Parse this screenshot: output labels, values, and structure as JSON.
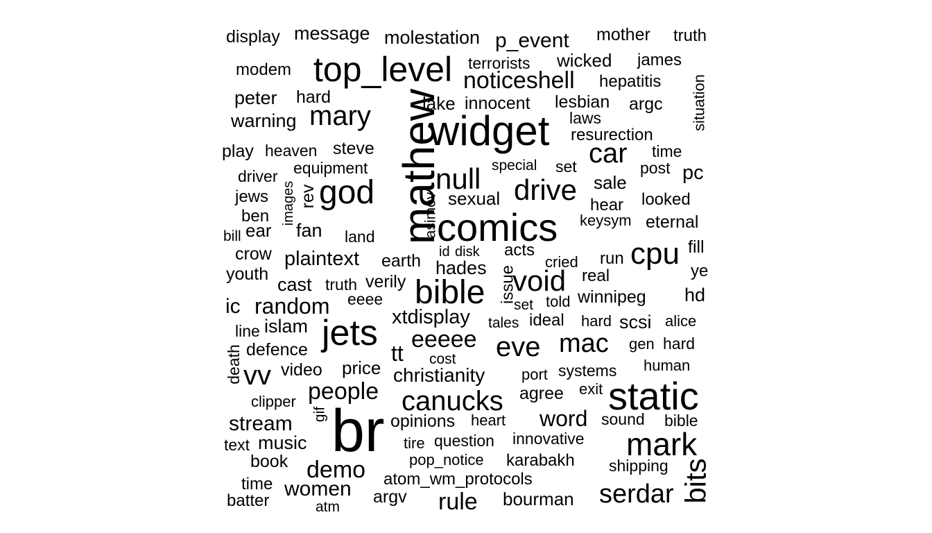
{
  "word_cloud": {
    "words": [
      {
        "text": "br",
        "rotated": false
      },
      {
        "text": "comics",
        "rotated": false
      },
      {
        "text": "widget",
        "rotated": false
      },
      {
        "text": "mathew",
        "rotated": true
      },
      {
        "text": "static",
        "rotated": false
      },
      {
        "text": "top_level",
        "rotated": false
      },
      {
        "text": "jets",
        "rotated": false
      },
      {
        "text": "god",
        "rotated": false
      },
      {
        "text": "bible",
        "rotated": false
      },
      {
        "text": "mark",
        "rotated": false
      },
      {
        "text": "null",
        "rotated": false
      },
      {
        "text": "drive",
        "rotated": false
      },
      {
        "text": "car",
        "rotated": false
      },
      {
        "text": "mary",
        "rotated": false
      },
      {
        "text": "canucks",
        "rotated": false
      },
      {
        "text": "cpu",
        "rotated": false
      },
      {
        "text": "void",
        "rotated": false
      },
      {
        "text": "eve",
        "rotated": false
      },
      {
        "text": "mac",
        "rotated": false
      },
      {
        "text": "serdar",
        "rotated": false
      },
      {
        "text": "bits",
        "rotated": true
      },
      {
        "text": "noticeshell",
        "rotated": false
      },
      {
        "text": "vv",
        "rotated": false
      },
      {
        "text": "people",
        "rotated": false
      },
      {
        "text": "demo",
        "rotated": false
      },
      {
        "text": "eeeee",
        "rotated": false
      },
      {
        "text": "rule",
        "rotated": false
      },
      {
        "text": "random",
        "rotated": false
      },
      {
        "text": "word",
        "rotated": false
      },
      {
        "text": "stream",
        "rotated": false
      },
      {
        "text": "women",
        "rotated": false
      },
      {
        "text": "xtdisplay",
        "rotated": false
      },
      {
        "text": "plaintext",
        "rotated": false
      },
      {
        "text": "christianity",
        "rotated": false
      },
      {
        "text": "p_event",
        "rotated": false
      },
      {
        "text": "molestation",
        "rotated": false
      },
      {
        "text": "message",
        "rotated": false
      },
      {
        "text": "display",
        "rotated": false
      },
      {
        "text": "mother",
        "rotated": false
      },
      {
        "text": "truth",
        "rotated": false
      },
      {
        "text": "terrorists",
        "rotated": false
      },
      {
        "text": "wicked",
        "rotated": false
      },
      {
        "text": "james",
        "rotated": false
      },
      {
        "text": "modem",
        "rotated": false
      },
      {
        "text": "hepatitis",
        "rotated": false
      },
      {
        "text": "peter",
        "rotated": false
      },
      {
        "text": "hard",
        "rotated": false
      },
      {
        "text": "lake",
        "rotated": false
      },
      {
        "text": "innocent",
        "rotated": false
      },
      {
        "text": "lesbian",
        "rotated": false
      },
      {
        "text": "argc",
        "rotated": false
      },
      {
        "text": "situation",
        "rotated": true
      },
      {
        "text": "warning",
        "rotated": false
      },
      {
        "text": "laws",
        "rotated": false
      },
      {
        "text": "resurection",
        "rotated": false
      },
      {
        "text": "play",
        "rotated": false
      },
      {
        "text": "heaven",
        "rotated": false
      },
      {
        "text": "steve",
        "rotated": false
      },
      {
        "text": "time",
        "rotated": false
      },
      {
        "text": "driver",
        "rotated": false
      },
      {
        "text": "equipment",
        "rotated": false
      },
      {
        "text": "special",
        "rotated": false
      },
      {
        "text": "set",
        "rotated": false
      },
      {
        "text": "post",
        "rotated": false
      },
      {
        "text": "pc",
        "rotated": false
      },
      {
        "text": "jews",
        "rotated": false
      },
      {
        "text": "images",
        "rotated": true
      },
      {
        "text": "rev",
        "rotated": true
      },
      {
        "text": "asimov",
        "rotated": true
      },
      {
        "text": "sexual",
        "rotated": false
      },
      {
        "text": "sale",
        "rotated": false
      },
      {
        "text": "hear",
        "rotated": false
      },
      {
        "text": "looked",
        "rotated": false
      },
      {
        "text": "ben",
        "rotated": false
      },
      {
        "text": "bill",
        "rotated": false
      },
      {
        "text": "ear",
        "rotated": false
      },
      {
        "text": "fan",
        "rotated": false
      },
      {
        "text": "land",
        "rotated": false
      },
      {
        "text": "keysym",
        "rotated": false
      },
      {
        "text": "eternal",
        "rotated": false
      },
      {
        "text": "crow",
        "rotated": false
      },
      {
        "text": "id",
        "rotated": false
      },
      {
        "text": "disk",
        "rotated": false
      },
      {
        "text": "acts",
        "rotated": false
      },
      {
        "text": "fill",
        "rotated": false
      },
      {
        "text": "earth",
        "rotated": false
      },
      {
        "text": "run",
        "rotated": false
      },
      {
        "text": "cried",
        "rotated": false
      },
      {
        "text": "youth",
        "rotated": false
      },
      {
        "text": "hades",
        "rotated": false
      },
      {
        "text": "issue",
        "rotated": true
      },
      {
        "text": "real",
        "rotated": false
      },
      {
        "text": "ye",
        "rotated": false
      },
      {
        "text": "cast",
        "rotated": false
      },
      {
        "text": "truth",
        "rotated": false
      },
      {
        "text": "verily",
        "rotated": false
      },
      {
        "text": "ic",
        "rotated": false
      },
      {
        "text": "eeee",
        "rotated": false
      },
      {
        "text": "set",
        "rotated": false
      },
      {
        "text": "told",
        "rotated": false
      },
      {
        "text": "winnipeg",
        "rotated": false
      },
      {
        "text": "hd",
        "rotated": false
      },
      {
        "text": "line",
        "rotated": false
      },
      {
        "text": "islam",
        "rotated": false
      },
      {
        "text": "tales",
        "rotated": false
      },
      {
        "text": "ideal",
        "rotated": false
      },
      {
        "text": "hard",
        "rotated": false
      },
      {
        "text": "scsi",
        "rotated": false
      },
      {
        "text": "alice",
        "rotated": false
      },
      {
        "text": "defence",
        "rotated": false
      },
      {
        "text": "tt",
        "rotated": false
      },
      {
        "text": "gen",
        "rotated": false
      },
      {
        "text": "hard",
        "rotated": false
      },
      {
        "text": "death",
        "rotated": true
      },
      {
        "text": "cost",
        "rotated": false
      },
      {
        "text": "video",
        "rotated": false
      },
      {
        "text": "price",
        "rotated": false
      },
      {
        "text": "port",
        "rotated": false
      },
      {
        "text": "systems",
        "rotated": false
      },
      {
        "text": "human",
        "rotated": false
      },
      {
        "text": "exit",
        "rotated": false
      },
      {
        "text": "agree",
        "rotated": false
      },
      {
        "text": "clipper",
        "rotated": false
      },
      {
        "text": "gif",
        "rotated": true
      },
      {
        "text": "opinions",
        "rotated": false
      },
      {
        "text": "heart",
        "rotated": false
      },
      {
        "text": "sound",
        "rotated": false
      },
      {
        "text": "bible",
        "rotated": false
      },
      {
        "text": "text",
        "rotated": false
      },
      {
        "text": "music",
        "rotated": false
      },
      {
        "text": "tire",
        "rotated": false
      },
      {
        "text": "question",
        "rotated": false
      },
      {
        "text": "innovative",
        "rotated": false
      },
      {
        "text": "book",
        "rotated": false
      },
      {
        "text": "pop_notice",
        "rotated": false
      },
      {
        "text": "karabakh",
        "rotated": false
      },
      {
        "text": "shipping",
        "rotated": false
      },
      {
        "text": "time",
        "rotated": false
      },
      {
        "text": "atom_wm_protocols",
        "rotated": false
      },
      {
        "text": "batter",
        "rotated": false
      },
      {
        "text": "argv",
        "rotated": false
      },
      {
        "text": "bourman",
        "rotated": false
      },
      {
        "text": "atm",
        "rotated": false
      }
    ]
  }
}
